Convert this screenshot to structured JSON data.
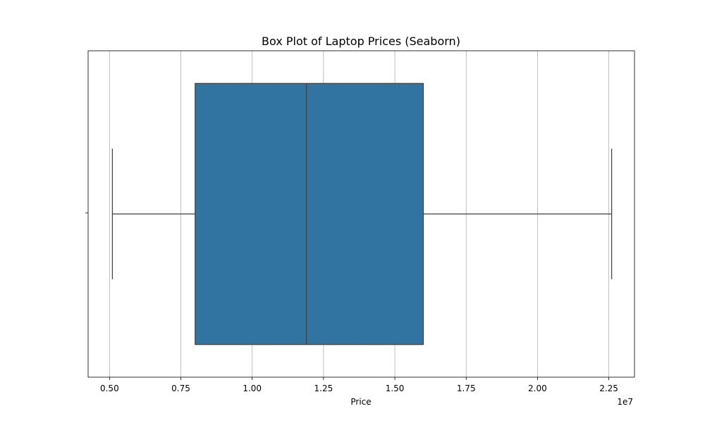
{
  "chart_data": {
    "type": "box",
    "title": "Box Plot of Laptop Prices (Seaborn)",
    "xlabel": "Price",
    "ylabel": "",
    "x_scale_label": "1e7",
    "orientation": "horizontal",
    "xlim": [
      0.425,
      2.34
    ],
    "xticks": [
      0.5,
      0.75,
      1.0,
      1.25,
      1.5,
      1.75,
      2.0,
      2.25
    ],
    "xtick_labels": [
      "0.50",
      "0.75",
      "1.00",
      "1.25",
      "1.50",
      "1.75",
      "2.00",
      "2.25"
    ],
    "grid_x": true,
    "grid_y": false,
    "box": {
      "whisker_low": 0.51,
      "q1": 0.8,
      "median": 1.19,
      "q3": 1.6,
      "whisker_high": 2.26
    },
    "colors": {
      "box_fill": "#3274a1",
      "line": "#3f3f3f",
      "grid": "#b0b0b0"
    }
  }
}
